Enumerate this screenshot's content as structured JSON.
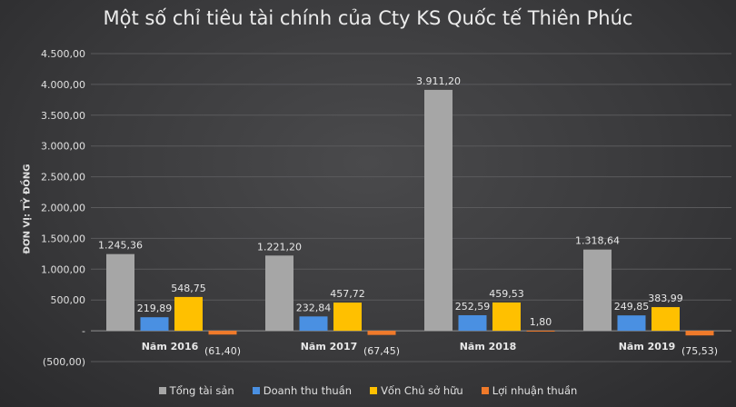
{
  "chart_data": {
    "type": "bar",
    "title": "Một số chỉ tiêu tài chính của Cty KS Quốc tế Thiên Phúc",
    "ylabel": "ĐƠN VỊ: TỶ ĐỒNG",
    "xlabel": "",
    "ylim": [
      -500,
      4500
    ],
    "yticks": [
      "(500,00)",
      "-",
      "500,00",
      "1.000,00",
      "1.500,00",
      "2.000,00",
      "2.500,00",
      "3.000,00",
      "3.500,00",
      "4.000,00",
      "4.500,00"
    ],
    "ytick_values": [
      -500,
      0,
      500,
      1000,
      1500,
      2000,
      2500,
      3000,
      3500,
      4000,
      4500
    ],
    "grid": true,
    "legend_position": "bottom",
    "categories": [
      "Năm 2016",
      "Năm 2017",
      "Năm 2018",
      "Năm 2019"
    ],
    "series": [
      {
        "name": "Tổng tài sản",
        "color": "#a6a6a6",
        "values": [
          1245.36,
          1221.2,
          3911.2,
          1318.64
        ],
        "labels": [
          "1.245,36",
          "1.221,20",
          "3.911,20",
          "1.318,64"
        ]
      },
      {
        "name": "Doanh thu thuần",
        "color": "#4a90e2",
        "values": [
          219.89,
          232.84,
          252.59,
          249.85
        ],
        "labels": [
          "219,89",
          "232,84",
          "252,59",
          "249,85"
        ]
      },
      {
        "name": "Vốn Chủ sở hữu",
        "color": "#ffc000",
        "values": [
          548.75,
          457.72,
          459.53,
          383.99
        ],
        "labels": [
          "548,75",
          "457,72",
          "459,53",
          "383,99"
        ]
      },
      {
        "name": "Lợi nhuận thuần",
        "color": "#f07a2a",
        "values": [
          -61.4,
          -67.45,
          1.8,
          -75.53
        ],
        "labels": [
          "(61,40)",
          "(67,45)",
          "1,80",
          "(75,53)"
        ]
      }
    ]
  }
}
